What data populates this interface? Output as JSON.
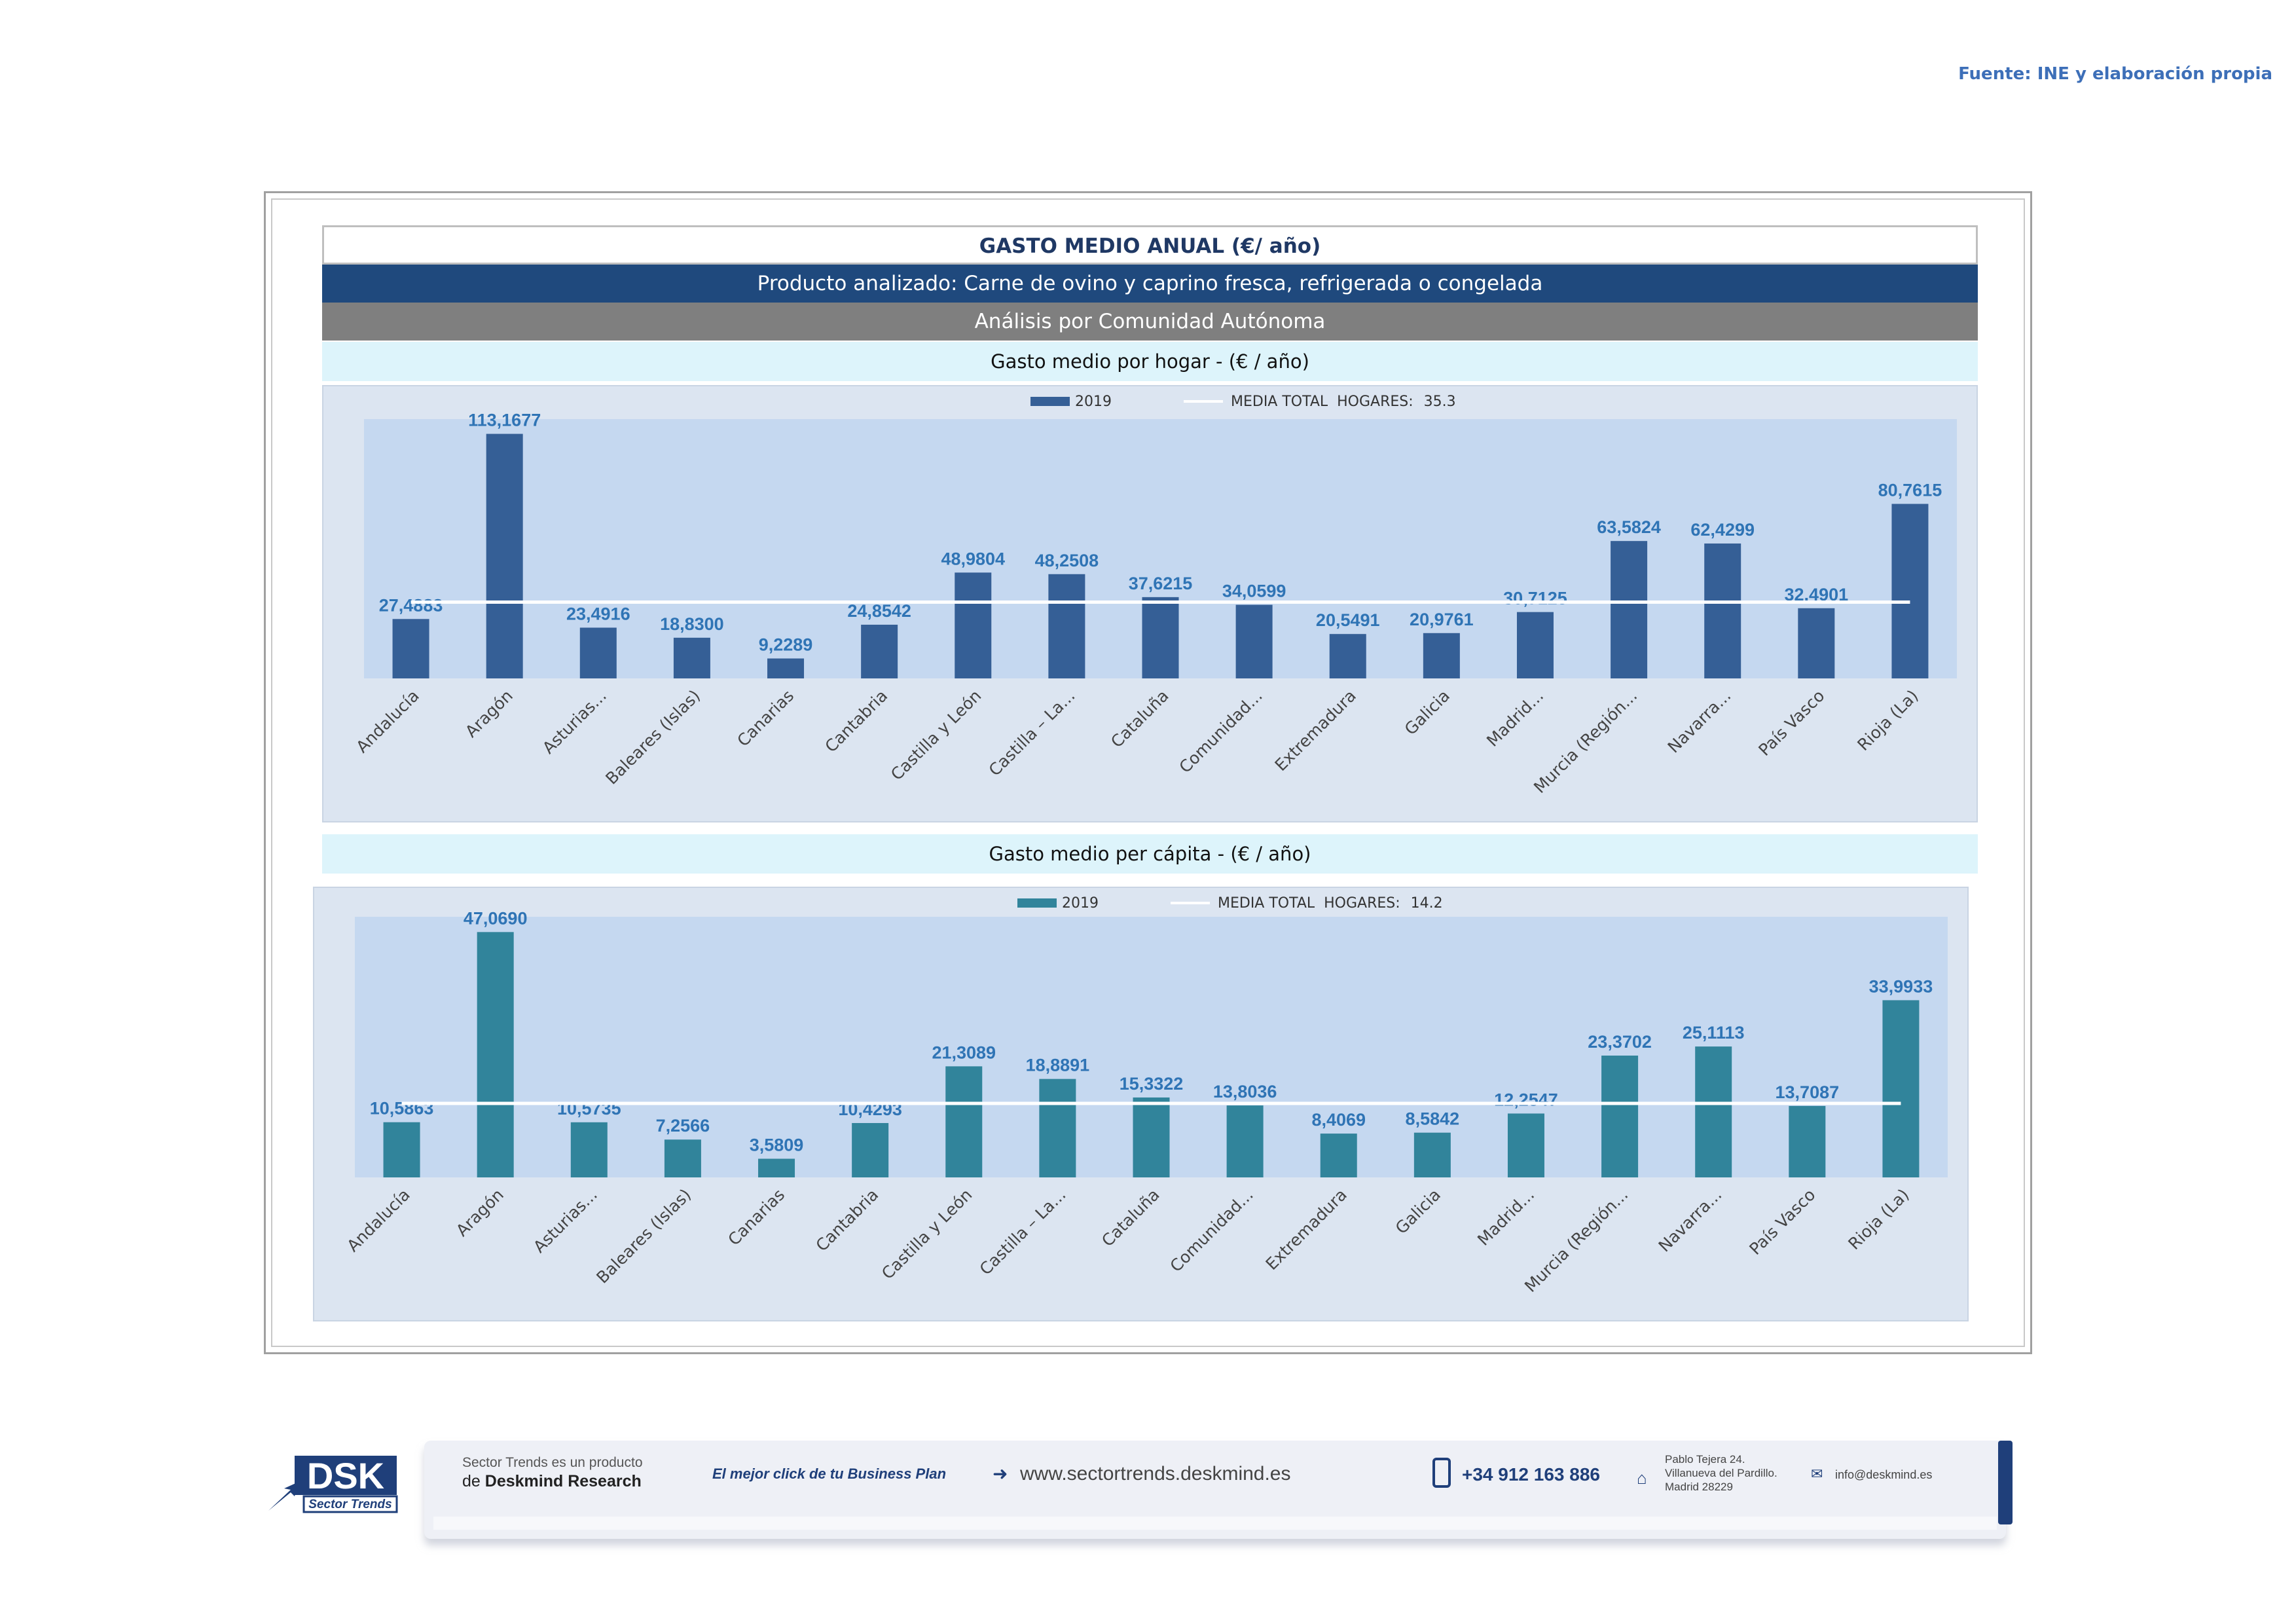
{
  "source": "Fuente: INE y elaboración propia",
  "header": {
    "title": "GASTO MEDIO ANUAL (€/ año)",
    "product": "Producto analizado: Carne de ovino y caprino fresca, refrigerada o congelada",
    "analysis": "Análisis por Comunidad Autónoma"
  },
  "colors": {
    "bar_hogar": "#355f96",
    "bar_capita": "#31849b",
    "label": "#2f74b5",
    "media_line": "#ffffff"
  },
  "chart_data": [
    {
      "type": "bar",
      "title": "Gasto medio por hogar -  (€ / año)",
      "legend": {
        "series_label": "2019",
        "media_label": "MEDIA TOTAL  HOGARES:",
        "media_value": "35.3",
        "position": "top-center"
      },
      "media": 35.3,
      "ylim": [
        0,
        120
      ],
      "categories": [
        "Andalucía",
        "Aragón",
        "Asturias...",
        "Baleares (Islas)",
        "Canarias",
        "Cantabria",
        "Castilla y León",
        "Castilla – La...",
        "Cataluña",
        "Comunidad...",
        "Extremadura",
        "Galicia",
        "Madrid...",
        "Murcia (Región...",
        "Navarra...",
        "País Vasco",
        "Rioja (La)"
      ],
      "series": [
        {
          "name": "2019",
          "values": [
            27.4883,
            113.1677,
            23.4916,
            18.83,
            9.2289,
            24.8542,
            48.9804,
            48.2508,
            37.6215,
            34.0599,
            20.5491,
            20.9761,
            30.7125,
            63.5824,
            62.4299,
            32.4901,
            80.7615
          ],
          "labels": [
            "27,4883",
            "113,1677",
            "23,4916",
            "18,8300",
            "9,2289",
            "24,8542",
            "48,9804",
            "48,2508",
            "37,6215",
            "34,0599",
            "20,5491",
            "20,9761",
            "30,7125",
            "63,5824",
            "62,4299",
            "32,4901",
            "80,7615"
          ]
        }
      ]
    },
    {
      "type": "bar",
      "title": "Gasto medio per cápita -  (€ / año)",
      "legend": {
        "series_label": "2019",
        "media_label": "MEDIA TOTAL  HOGARES:",
        "media_value": "14.2",
        "position": "top-center"
      },
      "media": 14.2,
      "ylim": [
        0,
        50
      ],
      "categories": [
        "Andalucía",
        "Aragón",
        "Asturias...",
        "Baleares (Islas)",
        "Canarias",
        "Cantabria",
        "Castilla y León",
        "Castilla – La...",
        "Cataluña",
        "Comunidad...",
        "Extremadura",
        "Galicia",
        "Madrid...",
        "Murcia (Región...",
        "Navarra...",
        "País Vasco",
        "Rioja (La)"
      ],
      "series": [
        {
          "name": "2019",
          "values": [
            10.5863,
            47.069,
            10.5735,
            7.2566,
            3.5809,
            10.4293,
            21.3089,
            18.8891,
            15.3322,
            13.8036,
            8.4069,
            8.5842,
            12.2547,
            23.3702,
            25.1113,
            13.7087,
            33.9933
          ],
          "labels": [
            "10,5863",
            "47,0690",
            "10,5735",
            "7,2566",
            "3,5809",
            "10,4293",
            "21,3089",
            "18,8891",
            "15,3322",
            "13,8036",
            "8,4069",
            "8,5842",
            "12,2547",
            "23,3702",
            "25,1113",
            "13,7087",
            "33,9933"
          ]
        }
      ]
    }
  ],
  "footer": {
    "logo_text": "DSK",
    "logo_sub": "Sector Trends",
    "product_line1": "Sector Trends es un producto",
    "product_line2_prefix": "de ",
    "product_line2_brand": "Deskmind Research",
    "slogan": "El mejor click de tu Business Plan",
    "website": "www.sectortrends.deskmind.es",
    "phone": "+34 912 163 886",
    "address_line1": "Pablo Tejera 24.",
    "address_line2": "Villanueva del Pardillo.",
    "address_line3": "Madrid 28229",
    "email": "info@deskmind.es"
  }
}
